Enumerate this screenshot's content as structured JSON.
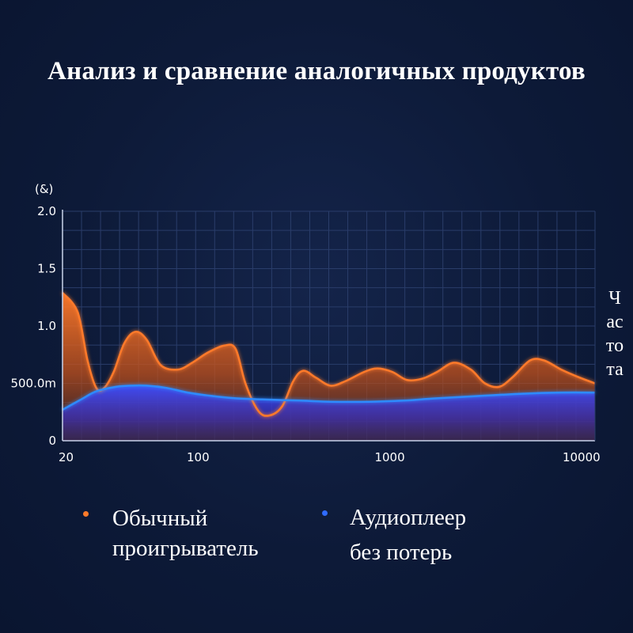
{
  "title": "Анализ и сравнение аналогичных продуктов",
  "colors": {
    "background": "#0d1a38",
    "series_orange": "#ff7a2a",
    "series_blue": "#2f6bff",
    "grid": "#2a3d6a"
  },
  "chart_data": {
    "type": "area",
    "title": "Анализ и сравнение аналогичных продуктов",
    "ylabel": "(&)",
    "xlabel": "Частота",
    "x_scale": "log",
    "xlim": [
      20,
      12000
    ],
    "ylim": [
      0,
      2.0
    ],
    "grid": true,
    "legend_position": "bottom",
    "y_ticks": [
      {
        "value": 0,
        "label": "0"
      },
      {
        "value": 0.5,
        "label": "500.0m"
      },
      {
        "value": 1.0,
        "label": "1.0"
      },
      {
        "value": 1.5,
        "label": "1.5"
      },
      {
        "value": 2.0,
        "label": "2.0"
      }
    ],
    "x_ticks": [
      {
        "value": 20,
        "label": "20"
      },
      {
        "value": 100,
        "label": "100"
      },
      {
        "value": 1000,
        "label": "1000"
      },
      {
        "value": 10000,
        "label": "10000"
      }
    ],
    "series": [
      {
        "name": "Обычный проигрыватель",
        "color": "#ff7a2a",
        "points": [
          [
            20,
            1.29
          ],
          [
            24,
            1.12
          ],
          [
            27,
            0.7
          ],
          [
            30,
            0.46
          ],
          [
            33,
            0.46
          ],
          [
            37,
            0.6
          ],
          [
            42,
            0.85
          ],
          [
            48,
            0.95
          ],
          [
            55,
            0.88
          ],
          [
            65,
            0.66
          ],
          [
            80,
            0.62
          ],
          [
            95,
            0.68
          ],
          [
            115,
            0.77
          ],
          [
            140,
            0.83
          ],
          [
            160,
            0.8
          ],
          [
            180,
            0.5
          ],
          [
            210,
            0.26
          ],
          [
            240,
            0.22
          ],
          [
            280,
            0.3
          ],
          [
            320,
            0.52
          ],
          [
            360,
            0.61
          ],
          [
            420,
            0.55
          ],
          [
            500,
            0.48
          ],
          [
            600,
            0.52
          ],
          [
            750,
            0.6
          ],
          [
            880,
            0.63
          ],
          [
            1050,
            0.6
          ],
          [
            1250,
            0.53
          ],
          [
            1500,
            0.54
          ],
          [
            1800,
            0.6
          ],
          [
            2200,
            0.68
          ],
          [
            2700,
            0.62
          ],
          [
            3200,
            0.5
          ],
          [
            3800,
            0.47
          ],
          [
            4500,
            0.56
          ],
          [
            5500,
            0.7
          ],
          [
            6500,
            0.7
          ],
          [
            8000,
            0.62
          ],
          [
            10000,
            0.55
          ],
          [
            12000,
            0.5
          ]
        ]
      },
      {
        "name": "Аудиоплеер без потерь",
        "color": "#2f6bff",
        "points": [
          [
            20,
            0.27
          ],
          [
            25,
            0.36
          ],
          [
            30,
            0.43
          ],
          [
            38,
            0.47
          ],
          [
            45,
            0.48
          ],
          [
            55,
            0.48
          ],
          [
            70,
            0.46
          ],
          [
            90,
            0.42
          ],
          [
            120,
            0.39
          ],
          [
            160,
            0.37
          ],
          [
            220,
            0.36
          ],
          [
            350,
            0.35
          ],
          [
            500,
            0.34
          ],
          [
            800,
            0.34
          ],
          [
            1200,
            0.35
          ],
          [
            1800,
            0.37
          ],
          [
            3000,
            0.39
          ],
          [
            5000,
            0.41
          ],
          [
            8000,
            0.42
          ],
          [
            12000,
            0.42
          ]
        ]
      }
    ]
  },
  "legend": [
    {
      "label_line1": "Обычный",
      "label_line2": "проигрыватель",
      "color": "#ff7a2a"
    },
    {
      "label_line1": "Аудиоплеер",
      "label_line2": "без потерь",
      "color": "#2f6bff"
    }
  ]
}
